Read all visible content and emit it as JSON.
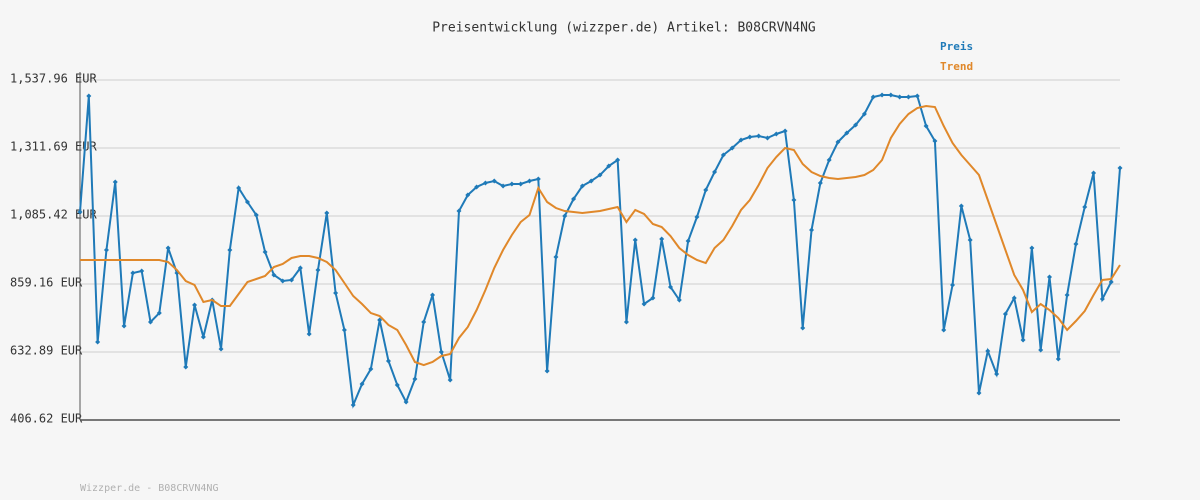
{
  "chart_data": {
    "type": "line",
    "title": "Preisentwicklung (wizzper.de) Artikel: B08CRVN4NG",
    "footer": "Wizzper.de - B08CRVN4NG",
    "ylim": [
      406.62,
      1537.96
    ],
    "yticks": [
      {
        "value": 406.62,
        "label": "406.62 EUR"
      },
      {
        "value": 632.89,
        "label": "632.89 EUR"
      },
      {
        "value": 859.16,
        "label": "859.16 EUR"
      },
      {
        "value": 1085.42,
        "label": "1,085.42 EUR"
      },
      {
        "value": 1311.69,
        "label": "1,311.69 EUR"
      },
      {
        "value": 1537.96,
        "label": "1,537.96 EUR"
      }
    ],
    "grid": true,
    "legend": "top-right",
    "series": [
      {
        "name": "Preis",
        "color": "#1f7ab8",
        "markers": true,
        "values": [
          1098.7,
          1484.7,
          666.1,
          972.3,
          1198.6,
          719.4,
          895.7,
          902.4,
          732.7,
          762.6,
          978.9,
          895.7,
          583.0,
          789.3,
          682.8,
          805.9,
          642.9,
          972.3,
          1178.6,
          1132.0,
          1088.7,
          965.6,
          889.1,
          869.1,
          872.5,
          912.4,
          692.8,
          905.7,
          1095.4,
          829.2,
          706.1,
          456.5,
          526.4,
          576.3,
          739.4,
          602.9,
          523.1,
          466.5,
          543.0,
          732.7,
          822.5,
          632.9,
          539.7,
          1102.0,
          1155.3,
          1181.9,
          1195.2,
          1201.9,
          1185.2,
          1191.9,
          1191.9,
          1201.9,
          1208.5,
          569.6,
          949.0,
          1085.4,
          1142.0,
          1185.2,
          1201.9,
          1221.8,
          1251.8,
          1271.8,
          732.7,
          1005.6,
          792.6,
          812.6,
          1008.9,
          849.2,
          805.9,
          1002.2,
          1082.1,
          1171.9,
          1231.8,
          1288.4,
          1311.7,
          1338.3,
          1348.3,
          1351.6,
          1345.0,
          1358.3,
          1368.2,
          1138.7,
          712.7,
          1038.8,
          1195.2,
          1271.8,
          1331.6,
          1361.6,
          1388.2,
          1424.8,
          1481.4,
          1488.0,
          1488.0,
          1481.4,
          1481.4,
          1484.7,
          1384.9,
          1335.0,
          706.1,
          855.8,
          1118.7,
          1005.6,
          496.4,
          636.2,
          559.7,
          759.3,
          812.6,
          672.8,
          978.9,
          639.5,
          882.4,
          609.6,
          822.5,
          992.2,
          1115.4,
          1228.5,
          809.2,
          865.8,
          1245.1
        ]
      },
      {
        "name": "Trend",
        "color": "#e0882a",
        "markers": false,
        "values": [
          939.0,
          939.0,
          939.0,
          939.0,
          939.0,
          939.0,
          939.0,
          939.0,
          939.0,
          939.0,
          932.3,
          905.7,
          869.1,
          855.8,
          799.2,
          805.9,
          785.9,
          785.9,
          825.9,
          865.8,
          875.8,
          885.8,
          915.7,
          925.7,
          945.7,
          952.3,
          952.3,
          945.7,
          932.3,
          905.7,
          862.5,
          819.2,
          792.6,
          762.6,
          752.7,
          722.7,
          706.1,
          656.2,
          599.6,
          589.6,
          599.6,
          619.6,
          626.2,
          679.5,
          716.1,
          772.6,
          839.2,
          912.4,
          972.3,
          1022.2,
          1065.4,
          1088.7,
          1178.6,
          1132.0,
          1112.0,
          1102.0,
          1098.7,
          1095.4,
          1098.7,
          1102.0,
          1108.7,
          1115.4,
          1065.4,
          1105.4,
          1092.1,
          1058.8,
          1048.8,
          1018.9,
          978.9,
          955.6,
          939.0,
          929.0,
          978.9,
          1005.6,
          1052.1,
          1105.4,
          1138.7,
          1188.6,
          1245.1,
          1281.7,
          1311.7,
          1305.0,
          1258.4,
          1231.8,
          1218.5,
          1211.9,
          1208.5,
          1211.9,
          1215.2,
          1221.8,
          1238.5,
          1271.8,
          1345.0,
          1391.5,
          1424.8,
          1444.8,
          1451.4,
          1448.1,
          1384.9,
          1328.3,
          1288.4,
          1255.1,
          1221.8,
          1138.7,
          1055.5,
          972.3,
          889.1,
          839.2,
          766.0,
          792.6,
          772.6,
          746.0,
          706.1,
          736.0,
          769.3,
          822.5,
          872.5,
          875.8,
          922.4
        ]
      }
    ]
  }
}
